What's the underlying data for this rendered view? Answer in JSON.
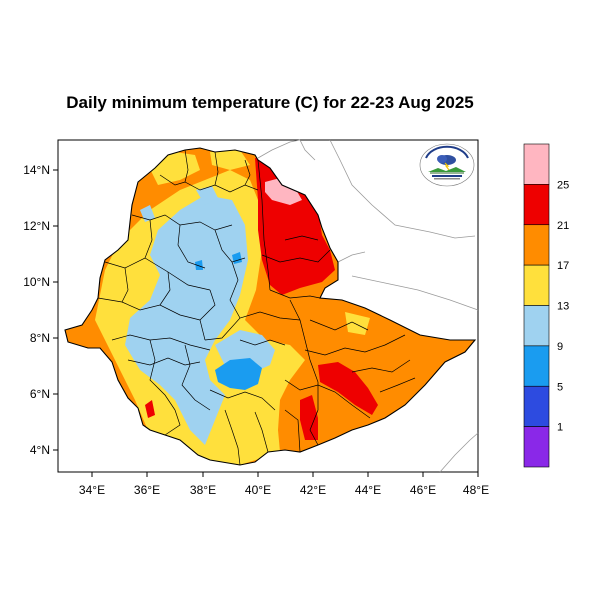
{
  "map": {
    "title": "Daily minimum temperature (C) for 22-23 Aug 2025",
    "lon_ticks": [
      "34°E",
      "36°E",
      "38°E",
      "40°E",
      "42°E",
      "44°E",
      "46°E",
      "48°E"
    ],
    "lat_ticks": [
      "14°N",
      "12°N",
      "10°N",
      "8°N",
      "6°N",
      "4°N"
    ],
    "extent": {
      "lon": [
        33,
        48.2
      ],
      "lat": [
        3.2,
        15
      ]
    },
    "colorbar": {
      "levels": [
        "25",
        "21",
        "17",
        "13",
        "9",
        "5",
        "1"
      ],
      "colors": [
        "#ffb6c1",
        "#ee0000",
        "#ff8c00",
        "#ffe03c",
        "#9fd2f0",
        "#1a9cf0",
        "#2d4be0",
        "#8a28e8"
      ]
    },
    "logo": {
      "name": "ethiopian-meteorology-institute-logo"
    }
  }
}
